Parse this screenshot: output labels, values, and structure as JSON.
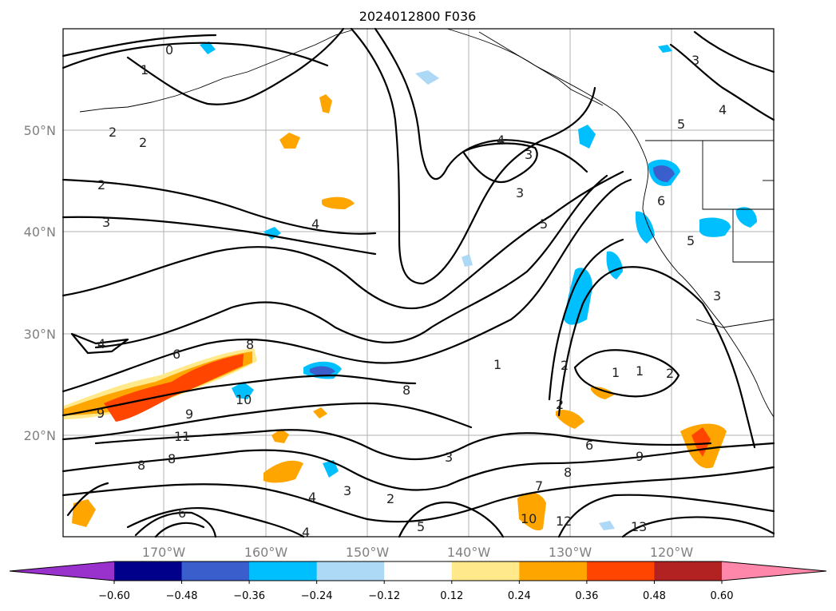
{
  "title": "2024012800 F036",
  "lat_labels": [
    "50°N",
    "40°N",
    "30°N",
    "20°N"
  ],
  "lon_labels": [
    "170°W",
    "160°W",
    "150°W",
    "140°W",
    "130°W",
    "120°W"
  ],
  "colorbar": {
    "tick_labels": [
      "−0.60",
      "−0.48",
      "−0.36",
      "−0.24",
      "−0.12",
      "0.12",
      "0.24",
      "0.36",
      "0.48",
      "0.60"
    ],
    "colors": [
      "#9932CC",
      "#00008B",
      "#3A5FCD",
      "#00BFFF",
      "#ADD8F6",
      "#FFFFFF",
      "#FFE98A",
      "#FFA500",
      "#FF4500",
      "#B22222",
      "#FF88AA"
    ]
  },
  "contour_labels": [
    "0",
    "1",
    "2",
    "2",
    "2",
    "3",
    "4",
    "4",
    "4",
    "5",
    "3",
    "3",
    "5",
    "6",
    "5",
    "3",
    "4",
    "2",
    "1",
    "1",
    "2",
    "6",
    "8",
    "9",
    "10",
    "9",
    "11",
    "8",
    "8",
    "8",
    "6",
    "3",
    "4",
    "5",
    "2",
    "7",
    "8",
    "10",
    "12",
    "13",
    "6",
    "9",
    "1",
    "2",
    "4",
    "3",
    "3"
  ]
}
